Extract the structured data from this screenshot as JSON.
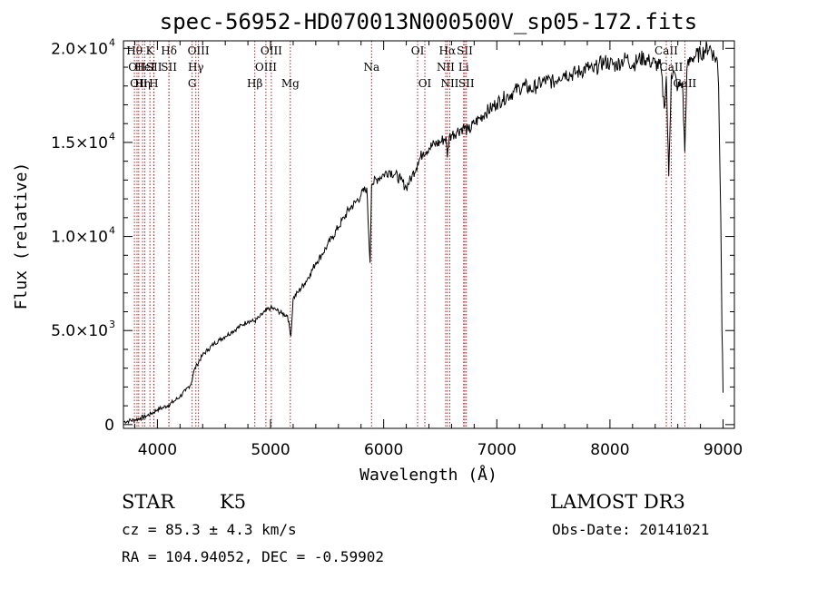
{
  "chart_data": {
    "type": "line",
    "title": "spec-56952-HD070013N000500V_sp05-172.fits",
    "xlabel": "Wavelength (Å)",
    "ylabel": "Flux (relative)",
    "xlim": [
      3700,
      9100
    ],
    "ylim": [
      -200,
      20400
    ],
    "xticks": [
      {
        "value": 4000,
        "label": "4000"
      },
      {
        "value": 5000,
        "label": "5000"
      },
      {
        "value": 6000,
        "label": "6000"
      },
      {
        "value": 7000,
        "label": "7000"
      },
      {
        "value": 8000,
        "label": "8000"
      },
      {
        "value": 9000,
        "label": "9000"
      }
    ],
    "yticks": [
      {
        "value": 0,
        "mant": "0",
        "exp": ""
      },
      {
        "value": 5000,
        "mant": "5.0×10",
        "exp": "3"
      },
      {
        "value": 10000,
        "mant": "1.0×10",
        "exp": "4"
      },
      {
        "value": 15000,
        "mant": "1.5×10",
        "exp": "4"
      },
      {
        "value": 20000,
        "mant": "2.0×10",
        "exp": "4"
      }
    ],
    "series": [
      {
        "name": "spectrum",
        "x": [
          3700,
          3750,
          3800,
          3850,
          3900,
          3950,
          4000,
          4050,
          4100,
          4150,
          4200,
          4250,
          4300,
          4320,
          4350,
          4400,
          4450,
          4500,
          4550,
          4600,
          4650,
          4700,
          4750,
          4800,
          4860,
          4900,
          4950,
          5000,
          5050,
          5100,
          5150,
          5180,
          5200,
          5250,
          5300,
          5350,
          5400,
          5450,
          5500,
          5550,
          5600,
          5650,
          5700,
          5750,
          5800,
          5850,
          5880,
          5893,
          5900,
          5950,
          6000,
          6050,
          6100,
          6150,
          6200,
          6250,
          6300,
          6350,
          6400,
          6450,
          6500,
          6550,
          6563,
          6580,
          6600,
          6650,
          6700,
          6750,
          6800,
          6850,
          6900,
          6950,
          7000,
          7050,
          7100,
          7150,
          7200,
          7250,
          7300,
          7350,
          7400,
          7450,
          7500,
          7550,
          7600,
          7650,
          7700,
          7750,
          7800,
          7850,
          7900,
          7950,
          8000,
          8050,
          8100,
          8150,
          8200,
          8250,
          8300,
          8350,
          8400,
          8450,
          8480,
          8498,
          8520,
          8542,
          8560,
          8600,
          8640,
          8662,
          8680,
          8720,
          8760,
          8800,
          8840,
          8880,
          8920,
          8950,
          8960,
          8980,
          8990,
          8995,
          9000
        ],
        "y": [
          150,
          200,
          250,
          350,
          450,
          600,
          800,
          900,
          1050,
          1250,
          1500,
          1800,
          2200,
          2800,
          3200,
          3700,
          4000,
          4300,
          4500,
          4700,
          4900,
          5100,
          5300,
          5500,
          5500,
          5700,
          6000,
          6200,
          6100,
          5900,
          5800,
          4700,
          6700,
          7100,
          7500,
          8000,
          8600,
          9000,
          9500,
          10000,
          10500,
          11000,
          11500,
          11800,
          12200,
          12600,
          8600,
          12700,
          12800,
          13100,
          13300,
          13500,
          13300,
          13000,
          12600,
          13200,
          13900,
          14500,
          14700,
          14900,
          15000,
          15300,
          14200,
          15300,
          15400,
          15600,
          15800,
          15600,
          16000,
          16300,
          16600,
          16800,
          17100,
          17300,
          17500,
          17700,
          17900,
          18000,
          17800,
          18000,
          18200,
          18300,
          18200,
          18500,
          18700,
          18600,
          18700,
          18800,
          19000,
          18800,
          19100,
          19300,
          19200,
          19100,
          19300,
          19500,
          19100,
          19400,
          19500,
          19300,
          19200,
          19000,
          16800,
          18500,
          13200,
          18600,
          18800,
          17900,
          18200,
          14500,
          18900,
          19500,
          19600,
          19700,
          19900,
          20100,
          19600,
          19300,
          18000,
          11000,
          5000,
          3800,
          1700
        ]
      }
    ],
    "lines": [
      {
        "wave": 3797,
        "row": 0,
        "label": "Hθ"
      },
      {
        "wave": 3820,
        "row": 1,
        "label": "OII"
      },
      {
        "wave": 3835,
        "row": 2,
        "label": "OII"
      },
      {
        "wave": 3889,
        "row": 1,
        "label": "HeI"
      },
      {
        "wave": 3869,
        "row": 2,
        "label": "Hη"
      },
      {
        "wave": 3934,
        "row": 0,
        "label": "K"
      },
      {
        "wave": 3968,
        "row": 2,
        "label": "H"
      },
      {
        "wave": 3970,
        "row": 1,
        "label": "SII"
      },
      {
        "wave": 4102,
        "row": 0,
        "label": "Hδ"
      },
      {
        "wave": 4102,
        "row": 1,
        "label": "SII"
      },
      {
        "wave": 4340,
        "row": 1,
        "label": "Hγ"
      },
      {
        "wave": 4363,
        "row": 0,
        "label": "OIII"
      },
      {
        "wave": 4307,
        "row": 2,
        "label": "G"
      },
      {
        "wave": 4861,
        "row": 2,
        "label": "Hβ"
      },
      {
        "wave": 4959,
        "row": 1,
        "label": "OIII"
      },
      {
        "wave": 5007,
        "row": 0,
        "label": "OIII"
      },
      {
        "wave": 5175,
        "row": 2,
        "label": "Mg"
      },
      {
        "wave": 5893,
        "row": 1,
        "label": "Na"
      },
      {
        "wave": 6300,
        "row": 0,
        "label": "OI"
      },
      {
        "wave": 6364,
        "row": 2,
        "label": "OI"
      },
      {
        "wave": 6548,
        "row": 1,
        "label": "NII"
      },
      {
        "wave": 6563,
        "row": 0,
        "label": "Hα"
      },
      {
        "wave": 6584,
        "row": 2,
        "label": "NII"
      },
      {
        "wave": 6717,
        "row": 0,
        "label": "SII"
      },
      {
        "wave": 6707,
        "row": 1,
        "label": "Li"
      },
      {
        "wave": 6731,
        "row": 2,
        "label": "SII"
      },
      {
        "wave": 8498,
        "row": 0,
        "label": "CaII"
      },
      {
        "wave": 8542,
        "row": 1,
        "label": "CaII"
      },
      {
        "wave": 8662,
        "row": 2,
        "label": "CaII"
      }
    ]
  },
  "info": {
    "class_label": "STAR",
    "subclass": "K5",
    "survey": "LAMOST DR3",
    "cz": "cz = 85.3 ± 4.3 km/s",
    "obs_date": "Obs-Date: 20141021",
    "radec": "RA = 104.94052, DEC =  -0.59902"
  },
  "colors": {
    "spectrum": "#000000",
    "line_marker": "#b22222"
  }
}
